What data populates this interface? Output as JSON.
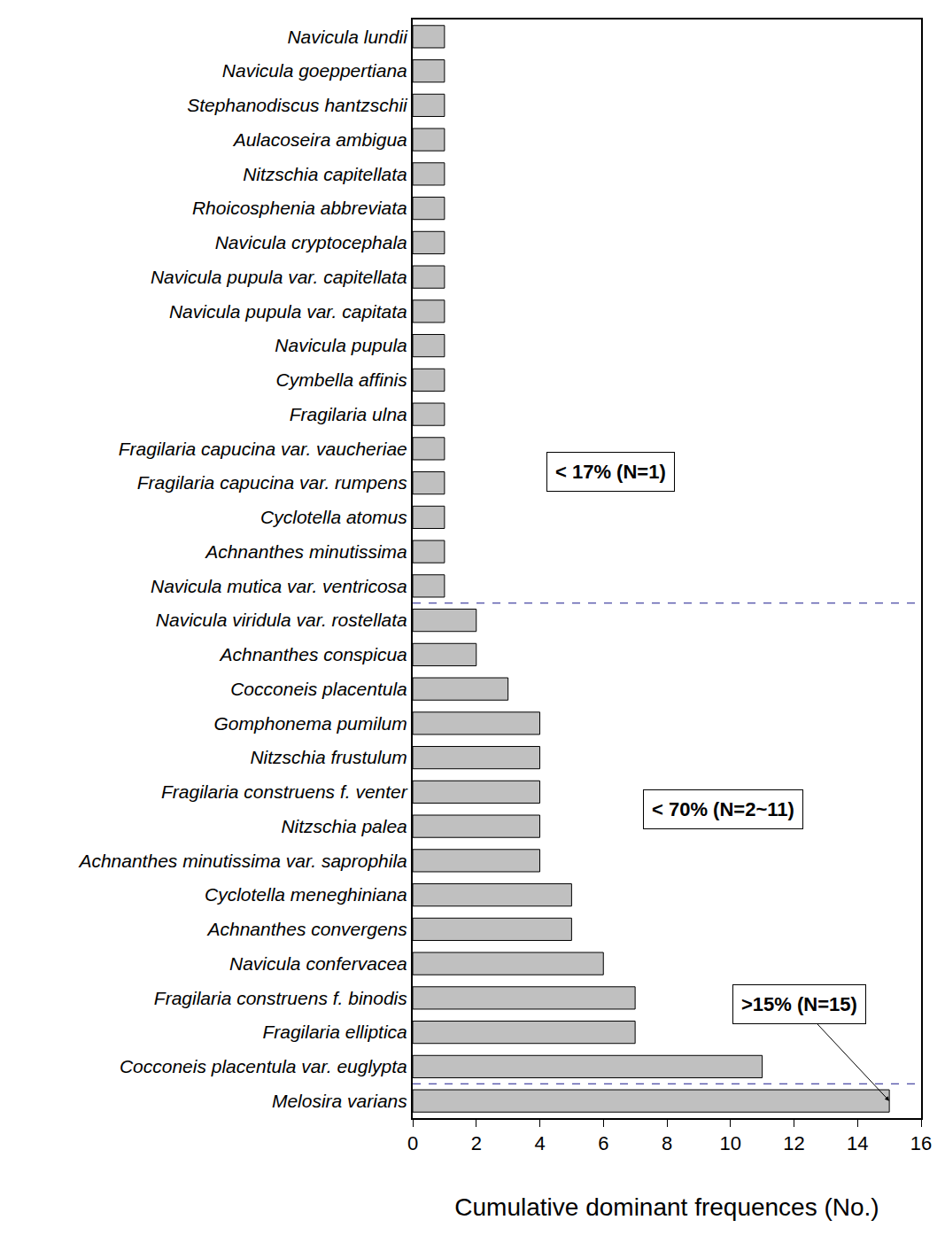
{
  "chart_data": {
    "type": "bar",
    "orientation": "horizontal",
    "x_label": "Cumulative dominant frequences (No.)",
    "categories": [
      "Navicula lundii",
      "Navicula goeppertiana",
      "Stephanodiscus hantzschii",
      "Aulacoseira ambigua",
      "Nitzschia capitellata",
      "Rhoicosphenia abbreviata",
      "Navicula cryptocephala",
      "Navicula pupula var. capitellata",
      "Navicula pupula var. capitata",
      "Navicula pupula",
      "Cymbella affinis",
      "Fragilaria ulna",
      "Fragilaria capucina var. vaucheriae",
      "Fragilaria capucina var. rumpens",
      "Cyclotella atomus",
      "Achnanthes minutissima",
      "Navicula mutica var. ventricosa",
      "Navicula viridula var. rostellata",
      "Achnanthes conspicua",
      "Cocconeis placentula",
      "Gomphonema pumilum",
      "Nitzschia frustulum",
      "Fragilaria construens f. venter",
      "Nitzschia palea",
      "Achnanthes minutissima var. saprophila",
      "Cyclotella meneghiniana",
      "Achnanthes convergens",
      "Navicula confervacea",
      "Fragilaria construens f. binodis",
      "Fragilaria elliptica",
      "Cocconeis placentula var. euglypta",
      "Melosira varians"
    ],
    "values": [
      1,
      1,
      1,
      1,
      1,
      1,
      1,
      1,
      1,
      1,
      1,
      1,
      1,
      1,
      1,
      1,
      1,
      2,
      2,
      3,
      4,
      4,
      4,
      4,
      4,
      5,
      5,
      6,
      7,
      7,
      11,
      15
    ],
    "color": "#c0c0c0",
    "xlim": [
      0,
      16
    ],
    "xticks": [
      0,
      2,
      4,
      6,
      8,
      10,
      12,
      14,
      16
    ],
    "grid": false,
    "annotations": [
      {
        "text": "< 17% (N=1)"
      },
      {
        "text": "< 70% (N=2~11)"
      },
      {
        "text": ">15% (N=15)"
      }
    ]
  }
}
